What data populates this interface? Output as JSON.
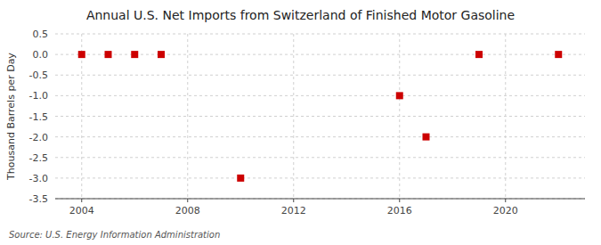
{
  "chart_data": {
    "type": "scatter",
    "title": "Annual U.S. Net Imports from Switzerland of Finished Motor Gasoline",
    "ylabel": "Thousand Barrels per Day",
    "annotations": [
      "Source: U.S. Energy Information Administration"
    ],
    "x": [
      2004,
      2005,
      2006,
      2007,
      2010,
      2016,
      2017,
      2019,
      2022
    ],
    "values": [
      0.0,
      0.0,
      0.0,
      0.0,
      -3.0,
      -1.0,
      -2.0,
      0.0,
      0.0
    ],
    "color": "#cc0000",
    "marker": "square",
    "xlim": [
      2003,
      2023
    ],
    "xticks": [
      2004,
      2008,
      2012,
      2016,
      2020
    ],
    "ylim": [
      -3.5,
      0.5
    ],
    "yticks": [
      0.5,
      {
        "value": 0.0,
        "label": "0.0"
      },
      -0.5,
      {
        "value": -1.0,
        "label": "-1.0"
      },
      -1.5,
      {
        "value": -2.0,
        "label": "-2.0"
      },
      -2.5,
      {
        "value": -3.0,
        "label": "-3.0"
      },
      -3.5
    ],
    "grid": true
  }
}
